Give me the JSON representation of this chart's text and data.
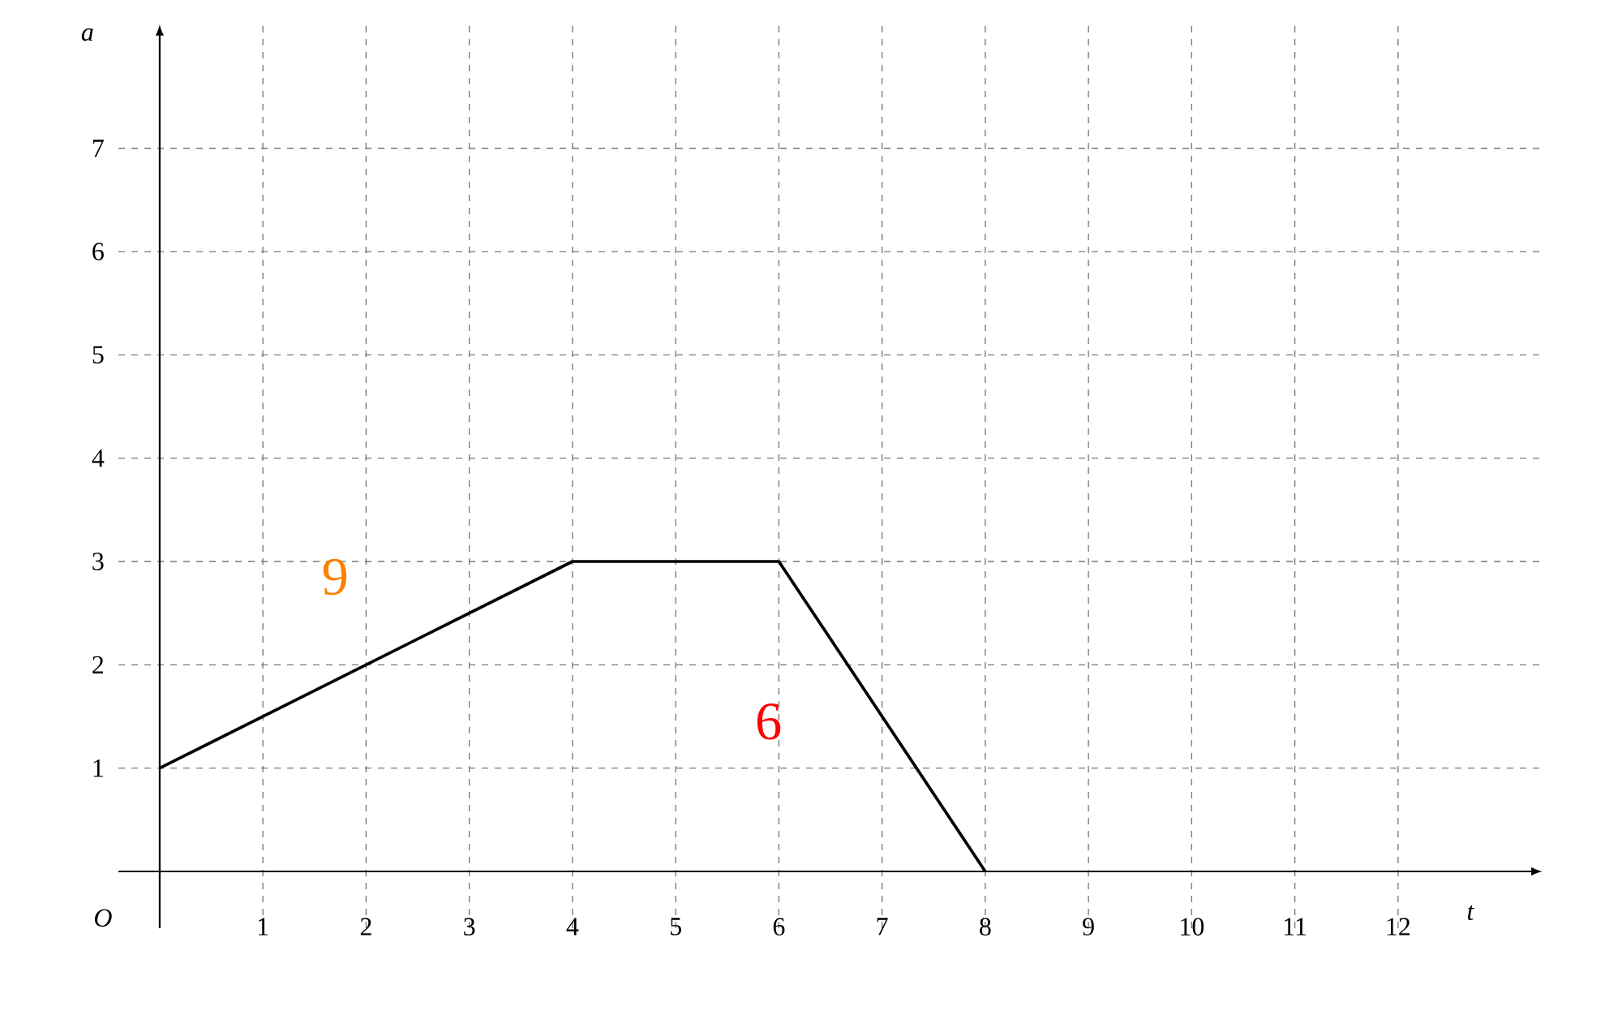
{
  "chart_data": {
    "type": "line",
    "xlabel": "t",
    "ylabel": "a",
    "x": [
      0,
      4,
      6,
      8
    ],
    "series": [
      {
        "color": "#000000",
        "values": [
          1,
          3,
          3,
          0
        ]
      }
    ],
    "xlim": [
      -0.4,
      13.4
    ],
    "ylim": [
      -0.55,
      8.2
    ],
    "xticks": [
      1,
      2,
      3,
      4,
      5,
      6,
      7,
      8,
      9,
      10,
      11,
      12
    ],
    "yticks": [
      1,
      2,
      3,
      4,
      5,
      6,
      7
    ],
    "grid": true,
    "marker": "none",
    "line_style": "solid",
    "annotations": [
      "O",
      "9",
      "6"
    ]
  }
}
